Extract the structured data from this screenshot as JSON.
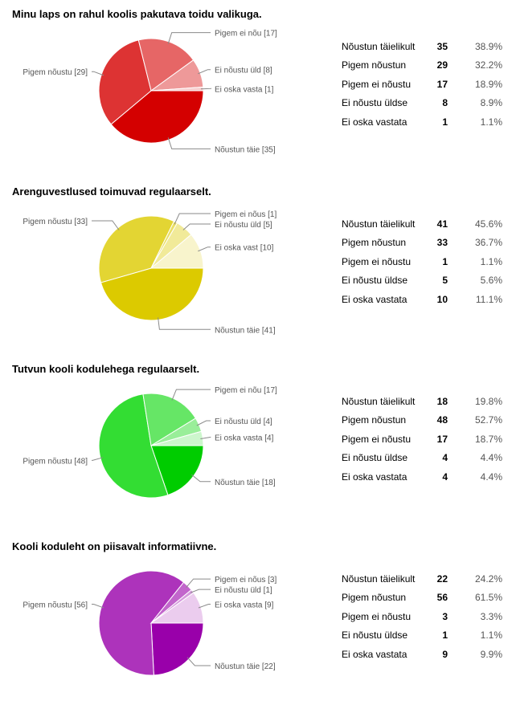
{
  "questions": [
    {
      "title": "Minu laps on rahul koolis pakutava toidu valikuga.",
      "rows": [
        {
          "label": "Nõustun täielikult",
          "count": 35,
          "percent": "38.9%"
        },
        {
          "label": "Pigem nõustun",
          "count": 29,
          "percent": "32.2%"
        },
        {
          "label": "Pigem ei nõustu",
          "count": 17,
          "percent": "18.9%"
        },
        {
          "label": "Ei nõustu üldse",
          "count": 8,
          "percent": "8.9%"
        },
        {
          "label": "Ei oska vastata",
          "count": 1,
          "percent": "1.1%"
        }
      ]
    },
    {
      "title": "Arenguvestlused toimuvad regulaarselt.",
      "rows": [
        {
          "label": "Nõustun täielikult",
          "count": 41,
          "percent": "45.6%"
        },
        {
          "label": "Pigem nõustun",
          "count": 33,
          "percent": "36.7%"
        },
        {
          "label": "Pigem ei nõustu",
          "count": 1,
          "percent": "1.1%"
        },
        {
          "label": "Ei nõustu üldse",
          "count": 5,
          "percent": "5.6%"
        },
        {
          "label": "Ei oska vastata",
          "count": 10,
          "percent": "11.1%"
        }
      ]
    },
    {
      "title": "Tutvun kooli kodulehega regulaarselt.",
      "rows": [
        {
          "label": "Nõustun täielikult",
          "count": 18,
          "percent": "19.8%"
        },
        {
          "label": "Pigem nõustun",
          "count": 48,
          "percent": "52.7%"
        },
        {
          "label": "Pigem ei nõustu",
          "count": 17,
          "percent": "18.7%"
        },
        {
          "label": "Ei nõustu üldse",
          "count": 4,
          "percent": "4.4%"
        },
        {
          "label": "Ei oska vastata",
          "count": 4,
          "percent": "4.4%"
        }
      ]
    },
    {
      "title": "Kooli koduleht on piisavalt informatiivne.",
      "rows": [
        {
          "label": "Nõustun täielikult",
          "count": 22,
          "percent": "24.2%"
        },
        {
          "label": "Pigem nõustun",
          "count": 56,
          "percent": "61.5%"
        },
        {
          "label": "Pigem ei nõustu",
          "count": 3,
          "percent": "3.3%"
        },
        {
          "label": "Ei nõustu üldse",
          "count": 1,
          "percent": "1.1%"
        },
        {
          "label": "Ei oska vastata",
          "count": 9,
          "percent": "9.9%"
        }
      ]
    }
  ],
  "chart_data": [
    {
      "type": "pie",
      "title": "Minu laps on rahul koolis pakutava toidu valikuga.",
      "slices": [
        {
          "label": "Nõustun täie [35]",
          "value": 35,
          "color": "#d40000"
        },
        {
          "label": "Pigem nõustu [29]",
          "value": 29,
          "color": "#dd3333"
        },
        {
          "label": "Pigem ei nõu [17]",
          "value": 17,
          "color": "#e66666"
        },
        {
          "label": "Ei nõustu üld [8]",
          "value": 8,
          "color": "#ee9999"
        },
        {
          "label": "Ei oska vasta [1]",
          "value": 1,
          "color": "#f6cccc"
        }
      ]
    },
    {
      "type": "pie",
      "title": "Arenguvestlused toimuvad regulaarselt.",
      "slices": [
        {
          "label": "Nõustun täie [41]",
          "value": 41,
          "color": "#dcca00"
        },
        {
          "label": "Pigem nõustu [33]",
          "value": 33,
          "color": "#e3d533"
        },
        {
          "label": "Pigem ei nõus [1]",
          "value": 1,
          "color": "#eadf66"
        },
        {
          "label": "Ei nõustu üld [5]",
          "value": 5,
          "color": "#f1ea99"
        },
        {
          "label": "Ei oska vast [10]",
          "value": 10,
          "color": "#f8f4cc"
        }
      ]
    },
    {
      "type": "pie",
      "title": "Tutvun kooli kodulehega regulaarselt.",
      "slices": [
        {
          "label": "Nõustun täie [18]",
          "value": 18,
          "color": "#00cc00"
        },
        {
          "label": "Pigem nõustu [48]",
          "value": 48,
          "color": "#33dd33"
        },
        {
          "label": "Pigem ei nõu [17]",
          "value": 17,
          "color": "#66e666"
        },
        {
          "label": "Ei nõustu üld [4]",
          "value": 4,
          "color": "#99ee99"
        },
        {
          "label": "Ei oska vasta [4]",
          "value": 4,
          "color": "#ccf6cc"
        }
      ]
    },
    {
      "type": "pie",
      "title": "Kooli koduleht on piisavalt informatiivne.",
      "slices": [
        {
          "label": "Nõustun täie [22]",
          "value": 22,
          "color": "#9900aa"
        },
        {
          "label": "Pigem nõustu [56]",
          "value": 56,
          "color": "#ad33bb"
        },
        {
          "label": "Pigem ei nõus [3]",
          "value": 3,
          "color": "#c266cc"
        },
        {
          "label": "Ei nõustu üld [1]",
          "value": 1,
          "color": "#d699dd"
        },
        {
          "label": "Ei oska vasta [9]",
          "value": 9,
          "color": "#ebccee"
        }
      ]
    }
  ]
}
